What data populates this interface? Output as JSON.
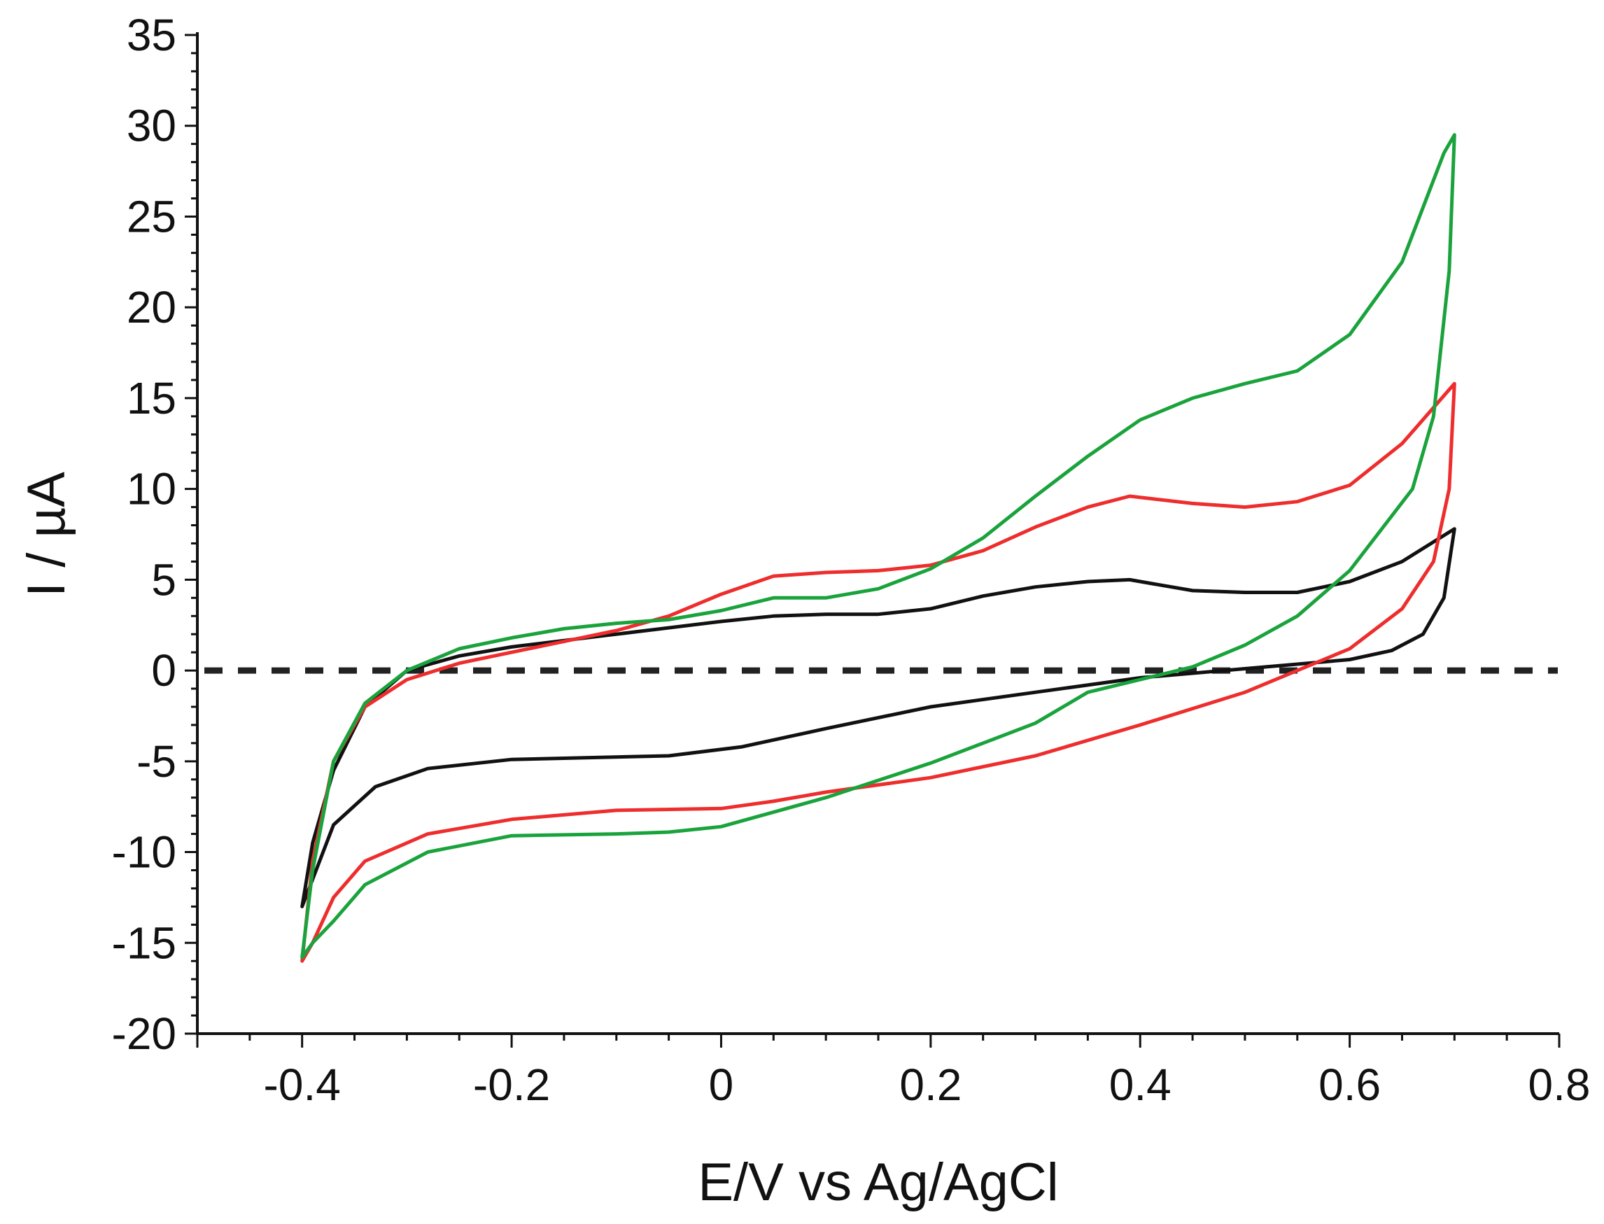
{
  "chart_data": {
    "type": "line",
    "title": "",
    "xlabel": "E/V vs Ag/AgCl",
    "ylabel_main": "I /",
    "ylabel_unit": "µA",
    "xlim": [
      -0.5,
      0.8
    ],
    "ylim": [
      -20,
      35
    ],
    "x_ticks": [
      -0.4,
      -0.2,
      0,
      0.2,
      0.4,
      0.6,
      0.8
    ],
    "x_tick_labels": [
      "-0.4",
      "-0.2",
      "0",
      "0.2",
      "0.4",
      "0.6",
      "0.8"
    ],
    "y_ticks": [
      -20,
      -15,
      -10,
      -5,
      0,
      5,
      10,
      15,
      20,
      25,
      30,
      35
    ],
    "y_tick_labels": [
      "-20",
      "-15",
      "-10",
      "-5",
      "0",
      "5",
      "10",
      "15",
      "20",
      "25",
      "30",
      "35"
    ],
    "grid": false,
    "zero_reference_line": {
      "y": 0,
      "style": "dashed",
      "color": "#222222"
    },
    "series": [
      {
        "name": "black",
        "color": "#111111",
        "points": [
          [
            -0.4,
            -13.0
          ],
          [
            -0.39,
            -9.5
          ],
          [
            -0.37,
            -5.5
          ],
          [
            -0.34,
            -2.0
          ],
          [
            -0.3,
            0.0
          ],
          [
            -0.25,
            0.8
          ],
          [
            -0.2,
            1.3
          ],
          [
            -0.1,
            2.0
          ],
          [
            0.0,
            2.7
          ],
          [
            0.05,
            3.0
          ],
          [
            0.1,
            3.1
          ],
          [
            0.15,
            3.1
          ],
          [
            0.2,
            3.4
          ],
          [
            0.25,
            4.1
          ],
          [
            0.3,
            4.6
          ],
          [
            0.35,
            4.9
          ],
          [
            0.39,
            5.0
          ],
          [
            0.45,
            4.4
          ],
          [
            0.5,
            4.3
          ],
          [
            0.55,
            4.3
          ],
          [
            0.6,
            4.9
          ],
          [
            0.65,
            6.0
          ],
          [
            0.7,
            7.8
          ],
          [
            0.69,
            4.0
          ],
          [
            0.67,
            2.0
          ],
          [
            0.64,
            1.1
          ],
          [
            0.6,
            0.6
          ],
          [
            0.5,
            0.1
          ],
          [
            0.4,
            -0.4
          ],
          [
            0.3,
            -1.2
          ],
          [
            0.2,
            -2.0
          ],
          [
            0.1,
            -3.2
          ],
          [
            0.02,
            -4.2
          ],
          [
            -0.05,
            -4.7
          ],
          [
            -0.2,
            -4.9
          ],
          [
            -0.28,
            -5.4
          ],
          [
            -0.33,
            -6.4
          ],
          [
            -0.37,
            -8.5
          ],
          [
            -0.39,
            -11.5
          ],
          [
            -0.4,
            -13.0
          ]
        ]
      },
      {
        "name": "red",
        "color": "#ee2d2d",
        "points": [
          [
            -0.4,
            -16.0
          ],
          [
            -0.39,
            -10.5
          ],
          [
            -0.37,
            -5.0
          ],
          [
            -0.34,
            -2.0
          ],
          [
            -0.3,
            -0.5
          ],
          [
            -0.25,
            0.4
          ],
          [
            -0.2,
            1.0
          ],
          [
            -0.15,
            1.6
          ],
          [
            -0.1,
            2.2
          ],
          [
            -0.05,
            3.0
          ],
          [
            0.0,
            4.2
          ],
          [
            0.05,
            5.2
          ],
          [
            0.1,
            5.4
          ],
          [
            0.15,
            5.5
          ],
          [
            0.2,
            5.8
          ],
          [
            0.25,
            6.6
          ],
          [
            0.3,
            7.9
          ],
          [
            0.35,
            9.0
          ],
          [
            0.39,
            9.6
          ],
          [
            0.45,
            9.2
          ],
          [
            0.5,
            9.0
          ],
          [
            0.55,
            9.3
          ],
          [
            0.6,
            10.2
          ],
          [
            0.65,
            12.5
          ],
          [
            0.7,
            15.8
          ],
          [
            0.695,
            10.0
          ],
          [
            0.68,
            6.0
          ],
          [
            0.65,
            3.4
          ],
          [
            0.6,
            1.2
          ],
          [
            0.55,
            0.0
          ],
          [
            0.5,
            -1.2
          ],
          [
            0.4,
            -3.0
          ],
          [
            0.3,
            -4.7
          ],
          [
            0.2,
            -5.9
          ],
          [
            0.1,
            -6.7
          ],
          [
            0.05,
            -7.2
          ],
          [
            0.0,
            -7.6
          ],
          [
            -0.1,
            -7.7
          ],
          [
            -0.2,
            -8.2
          ],
          [
            -0.28,
            -9.0
          ],
          [
            -0.34,
            -10.5
          ],
          [
            -0.37,
            -12.5
          ],
          [
            -0.39,
            -15.0
          ],
          [
            -0.4,
            -16.0
          ]
        ]
      },
      {
        "name": "green",
        "color": "#1aa33c",
        "points": [
          [
            -0.4,
            -15.8
          ],
          [
            -0.39,
            -11.0
          ],
          [
            -0.37,
            -5.0
          ],
          [
            -0.34,
            -1.8
          ],
          [
            -0.3,
            0.0
          ],
          [
            -0.25,
            1.2
          ],
          [
            -0.2,
            1.8
          ],
          [
            -0.15,
            2.3
          ],
          [
            -0.1,
            2.6
          ],
          [
            -0.05,
            2.8
          ],
          [
            0.0,
            3.3
          ],
          [
            0.05,
            4.0
          ],
          [
            0.1,
            4.0
          ],
          [
            0.15,
            4.5
          ],
          [
            0.2,
            5.6
          ],
          [
            0.25,
            7.3
          ],
          [
            0.3,
            9.6
          ],
          [
            0.35,
            11.8
          ],
          [
            0.4,
            13.8
          ],
          [
            0.45,
            15.0
          ],
          [
            0.5,
            15.8
          ],
          [
            0.55,
            16.5
          ],
          [
            0.6,
            18.5
          ],
          [
            0.65,
            22.5
          ],
          [
            0.69,
            28.5
          ],
          [
            0.7,
            29.5
          ],
          [
            0.695,
            22.0
          ],
          [
            0.68,
            14.0
          ],
          [
            0.66,
            10.0
          ],
          [
            0.6,
            5.5
          ],
          [
            0.55,
            3.0
          ],
          [
            0.5,
            1.4
          ],
          [
            0.45,
            0.2
          ],
          [
            0.4,
            -0.5
          ],
          [
            0.35,
            -1.2
          ],
          [
            0.3,
            -2.9
          ],
          [
            0.25,
            -4.0
          ],
          [
            0.2,
            -5.1
          ],
          [
            0.1,
            -7.0
          ],
          [
            0.0,
            -8.6
          ],
          [
            -0.05,
            -8.9
          ],
          [
            -0.1,
            -9.0
          ],
          [
            -0.2,
            -9.1
          ],
          [
            -0.28,
            -10.0
          ],
          [
            -0.34,
            -11.8
          ],
          [
            -0.37,
            -13.8
          ],
          [
            -0.39,
            -15.0
          ],
          [
            -0.4,
            -15.8
          ]
        ]
      }
    ]
  }
}
